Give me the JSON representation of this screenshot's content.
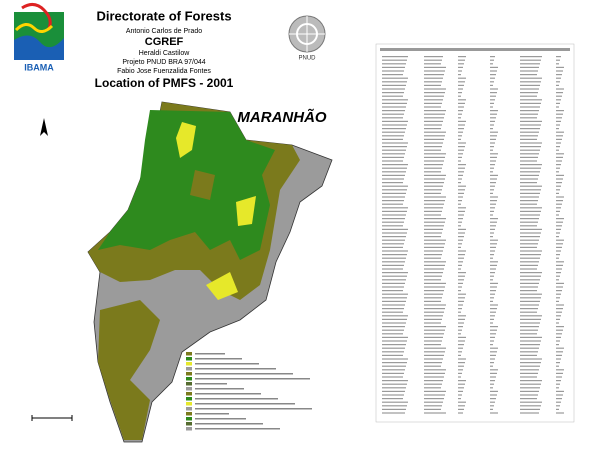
{
  "header": {
    "title": "Directorate of Forests",
    "author": "Antonio Carlos de Prado",
    "unit": "CGREF",
    "credit": "Heraldi Castilow",
    "project": "Projeto PNUD BRA 97/044",
    "credit2": "Fabio Jose Fuenzalida Fontes",
    "subtitle": "Location of PMFS - 2001"
  },
  "logos": {
    "left": "IBAMA",
    "right": "PNUD"
  },
  "map": {
    "state_label": "MARANHÃO"
  }
}
